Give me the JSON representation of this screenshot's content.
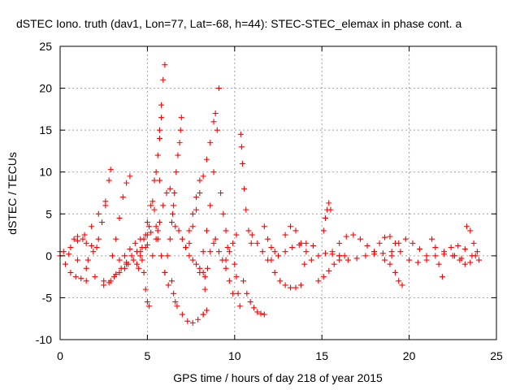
{
  "chart_data": {
    "type": "scatter",
    "title": "dSTEC Iono. truth (dav1, Lon=77, Lat=-68, h=44): STEC-STEC_elemax in phase cont. a",
    "xlabel": "GPS time / hours of day 218 of year 2015",
    "ylabel": "dSTEC  / TECUs",
    "xlim": [
      0,
      25
    ],
    "ylim": [
      -10,
      25
    ],
    "xticks": [
      0,
      5,
      10,
      15,
      20,
      25
    ],
    "yticks": [
      -10,
      -5,
      0,
      5,
      10,
      15,
      20,
      25
    ],
    "xtick_labels": [
      "0",
      "5",
      "10",
      "15",
      "20",
      "25"
    ],
    "ytick_labels": [
      "-10",
      "-5",
      "0",
      "5",
      "10",
      "15",
      "20",
      "25"
    ],
    "grid": true,
    "marker": "+",
    "color": "#ff0000",
    "arcs": [
      {
        "x": [
          0.0,
          0.5,
          1.0,
          1.5,
          2.0,
          2.5
        ],
        "y": [
          0.5,
          0.2,
          -0.5,
          -1.5,
          -2.5,
          -3.0
        ]
      },
      {
        "x": [
          0.0,
          0.3,
          0.6,
          0.9,
          1.2,
          1.5
        ],
        "y": [
          0.0,
          -1.0,
          -2.0,
          -2.5,
          -2.7,
          -3.0
        ]
      },
      {
        "x": [
          0.2,
          0.6,
          1.0,
          1.4,
          1.8,
          2.2,
          2.6
        ],
        "y": [
          0.5,
          1.0,
          1.8,
          2.5,
          3.5,
          5.0,
          6.0
        ]
      },
      {
        "x": [
          0.8,
          1.0,
          1.3,
          1.5,
          1.8,
          2.1
        ],
        "y": [
          2.0,
          2.3,
          2.0,
          1.5,
          1.2,
          1.0
        ]
      },
      {
        "x": [
          1.6,
          1.9,
          2.2,
          2.4,
          2.6,
          2.8,
          2.9
        ],
        "y": [
          -0.5,
          0.5,
          2.0,
          4.0,
          6.5,
          9.0,
          10.3
        ]
      },
      {
        "x": [
          2.5,
          2.8,
          3.1,
          3.4,
          3.7,
          3.9
        ],
        "y": [
          -3.5,
          -3.2,
          -2.5,
          -2.0,
          -1.5,
          -1.0
        ]
      },
      {
        "x": [
          2.9,
          3.2,
          3.5,
          3.8,
          4.1,
          4.4,
          4.7,
          5.0
        ],
        "y": [
          -3.0,
          -2.2,
          -1.5,
          -0.8,
          0.0,
          0.5,
          1.0,
          1.3
        ]
      },
      {
        "x": [
          3.0,
          3.2,
          3.4,
          3.6,
          3.8,
          4.0
        ],
        "y": [
          0.0,
          2.0,
          4.5,
          7.0,
          8.7,
          9.5
        ]
      },
      {
        "x": [
          3.4,
          3.7,
          4.0,
          4.3,
          4.6,
          4.9,
          5.2,
          5.6
        ],
        "y": [
          -0.5,
          0.0,
          0.8,
          1.5,
          2.0,
          2.5,
          2.8,
          3.0
        ]
      },
      {
        "x": [
          3.8,
          4.2,
          4.6,
          5.0,
          5.4,
          5.7
        ],
        "y": [
          -1.0,
          -0.5,
          0.5,
          2.5,
          5.5,
          9.0
        ]
      },
      {
        "x": [
          4.4,
          4.6,
          4.8,
          5.0,
          5.2,
          5.4,
          5.6,
          5.7,
          5.8,
          5.9,
          6.0
        ],
        "y": [
          -1.0,
          0.0,
          2.0,
          4.0,
          6.0,
          9.0,
          12.0,
          15.0,
          18.0,
          21.0,
          22.8
        ]
      },
      {
        "x": [
          4.8,
          4.9,
          5.0,
          5.1
        ],
        "y": [
          -2.0,
          -4.0,
          -5.5,
          -6.0
        ]
      },
      {
        "x": [
          4.5,
          4.7,
          4.9,
          5.1,
          5.3,
          5.5,
          5.7,
          5.8
        ],
        "y": [
          -1.5,
          -0.5,
          1.0,
          3.5,
          6.5,
          10.0,
          14.0,
          16.5
        ]
      },
      {
        "x": [
          5.3,
          5.5,
          5.7,
          5.9,
          6.1,
          6.3,
          6.5
        ],
        "y": [
          0.0,
          2.0,
          4.0,
          6.0,
          7.5,
          8.0,
          6.0
        ]
      },
      {
        "x": [
          5.5,
          5.6,
          5.8,
          6.0,
          6.2
        ],
        "y": [
          3.5,
          2.0,
          0.0,
          -2.0,
          -3.5
        ]
      },
      {
        "x": [
          6.0,
          6.15,
          6.3,
          6.45,
          6.55,
          6.65,
          6.75,
          6.85,
          6.9,
          6.95
        ],
        "y": [
          -2.0,
          0.0,
          2.0,
          5.0,
          7.5,
          10.0,
          12.0,
          13.5,
          15.0,
          16.5
        ]
      },
      {
        "x": [
          6.4,
          6.5,
          6.6,
          6.7
        ],
        "y": [
          -3.0,
          -4.5,
          -5.5,
          -6.0
        ]
      },
      {
        "x": [
          6.4,
          6.6,
          6.8,
          7.0,
          7.2,
          7.4,
          7.6,
          7.8,
          8.0,
          8.2,
          8.3
        ],
        "y": [
          4.0,
          3.5,
          3.0,
          2.0,
          1.0,
          0.0,
          -0.5,
          -1.0,
          -1.5,
          -2.0,
          -2.5
        ]
      },
      {
        "x": [
          7.0,
          7.3,
          7.6,
          7.9,
          8.2,
          8.4
        ],
        "y": [
          -7.0,
          -7.8,
          -8.0,
          -7.6,
          -7.0,
          -6.5
        ]
      },
      {
        "x": [
          7.2,
          7.4,
          7.6,
          7.8,
          8.0
        ],
        "y": [
          1.0,
          3.0,
          5.0,
          7.0,
          9.0
        ]
      },
      {
        "x": [
          7.4,
          7.6,
          7.8,
          8.0,
          8.2,
          8.4,
          8.6,
          8.8,
          8.9
        ],
        "y": [
          1.5,
          3.5,
          5.5,
          7.5,
          9.5,
          11.5,
          13.5,
          16.0,
          17.0
        ]
      },
      {
        "x": [
          8.0,
          8.2,
          8.4,
          8.6,
          8.8,
          9.0,
          9.1
        ],
        "y": [
          -2.0,
          0.5,
          3.0,
          6.0,
          10.0,
          15.0,
          20.0
        ]
      },
      {
        "x": [
          8.2,
          8.3,
          8.45,
          8.6,
          8.8
        ],
        "y": [
          -7.0,
          -4.0,
          -1.5,
          0.5,
          1.5
        ]
      },
      {
        "x": [
          8.9,
          9.1,
          9.3,
          9.5,
          9.7,
          9.9
        ],
        "y": [
          2.0,
          0.5,
          -0.5,
          -1.5,
          -3.0,
          -4.5
        ]
      },
      {
        "x": [
          9.2,
          9.35,
          9.5,
          9.6
        ],
        "y": [
          7.5,
          5.0,
          3.0,
          1.0
        ]
      },
      {
        "x": [
          9.5,
          9.7,
          9.9,
          10.1
        ],
        "y": [
          -0.5,
          0.5,
          1.5,
          2.5
        ]
      },
      {
        "x": [
          10.0,
          10.1,
          10.2,
          10.3
        ],
        "y": [
          -1.0,
          -2.5,
          -4.5,
          -6.0
        ]
      },
      {
        "x": [
          10.35,
          10.4,
          10.45,
          10.55,
          10.65,
          10.8,
          10.95
        ],
        "y": [
          14.5,
          13.0,
          11.0,
          8.0,
          5.5,
          3.0,
          1.5
        ]
      },
      {
        "x": [
          10.5,
          10.7,
          10.9,
          11.1,
          11.3,
          11.5,
          11.7
        ],
        "y": [
          -3.0,
          -4.5,
          -5.5,
          -6.2,
          -6.7,
          -6.9,
          -7.0
        ]
      },
      {
        "x": [
          11.0,
          11.3,
          11.6,
          11.9
        ],
        "y": [
          2.5,
          1.5,
          0.5,
          -0.5
        ]
      },
      {
        "x": [
          11.7,
          11.9,
          12.1,
          12.3
        ],
        "y": [
          3.5,
          2.0,
          1.0,
          0.5
        ]
      },
      {
        "x": [
          12.1,
          12.5,
          12.9,
          13.3,
          13.7,
          14.1,
          14.5
        ],
        "y": [
          -0.5,
          0.0,
          0.5,
          1.0,
          1.3,
          1.5,
          1.2
        ]
      },
      {
        "x": [
          12.3,
          12.6,
          12.9,
          13.2,
          13.5,
          13.8
        ],
        "y": [
          -2.0,
          -3.0,
          -3.5,
          -3.8,
          -3.8,
          -3.5
        ]
      },
      {
        "x": [
          12.9,
          13.2,
          13.5,
          13.8,
          14.1
        ],
        "y": [
          2.5,
          3.5,
          3.0,
          1.5,
          0.5
        ]
      },
      {
        "x": [
          14.0,
          14.4,
          14.8,
          15.2,
          15.6,
          16.0
        ],
        "y": [
          -1.0,
          -0.5,
          0.0,
          0.3,
          0.2,
          0.0
        ]
      },
      {
        "x": [
          14.8,
          15.1,
          15.4,
          15.7,
          16.0,
          16.3
        ],
        "y": [
          -3.0,
          -2.5,
          -1.8,
          -1.0,
          -0.5,
          0.0
        ]
      },
      {
        "x": [
          15.1,
          15.2,
          15.3,
          15.4,
          15.5
        ],
        "y": [
          3.0,
          4.5,
          5.5,
          6.3,
          5.5
        ]
      },
      {
        "x": [
          15.6,
          16.0,
          16.4,
          16.8,
          17.2,
          17.6,
          18.0
        ],
        "y": [
          0.5,
          1.5,
          2.3,
          2.5,
          2.0,
          1.2,
          0.5
        ]
      },
      {
        "x": [
          16.0,
          16.5,
          17.0,
          17.5,
          18.0,
          18.5,
          19.0
        ],
        "y": [
          0.0,
          -0.5,
          -0.3,
          0.0,
          0.2,
          0.3,
          0.0
        ]
      },
      {
        "x": [
          18.0,
          18.3,
          18.6,
          18.9,
          19.2,
          19.5
        ],
        "y": [
          0.5,
          1.5,
          2.2,
          2.3,
          1.5,
          0.5
        ]
      },
      {
        "x": [
          18.6,
          18.9,
          19.2,
          19.4,
          19.6
        ],
        "y": [
          -0.5,
          -1.0,
          -2.0,
          -3.0,
          -3.5
        ]
      },
      {
        "x": [
          19.0,
          19.4,
          19.8,
          20.2,
          20.6,
          21.0
        ],
        "y": [
          0.5,
          1.5,
          2.0,
          1.5,
          0.8,
          0.0
        ]
      },
      {
        "x": [
          20.0,
          20.5,
          21.0,
          21.5,
          22.0,
          22.5,
          23.0
        ],
        "y": [
          -0.5,
          -0.8,
          -0.5,
          0.0,
          0.2,
          0.0,
          -0.3
        ]
      },
      {
        "x": [
          21.3,
          21.5,
          21.7,
          21.9
        ],
        "y": [
          2.0,
          1.0,
          -1.0,
          -2.5
        ]
      },
      {
        "x": [
          22.0,
          22.4,
          22.8,
          23.2,
          23.6,
          24.0
        ],
        "y": [
          0.5,
          1.0,
          1.2,
          0.8,
          0.0,
          -0.5
        ]
      },
      {
        "x": [
          22.6,
          22.9,
          23.2,
          23.5,
          23.8
        ],
        "y": [
          0.0,
          -0.5,
          -1.0,
          -0.8,
          0.0
        ]
      },
      {
        "x": [
          23.3,
          23.5,
          23.7,
          23.9
        ],
        "y": [
          3.5,
          3.0,
          1.5,
          0.5
        ]
      }
    ]
  }
}
